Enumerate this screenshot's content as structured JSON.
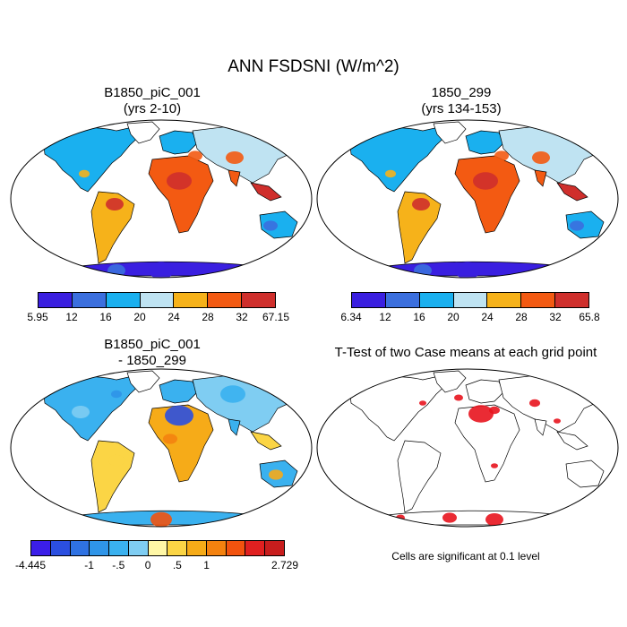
{
  "title": "ANN FSDSNI (W/m^2)",
  "panels": [
    {
      "title_line1": "B1850_piC_001",
      "title_line2": "(yrs 2-10)"
    },
    {
      "title_line1": "1850_299",
      "title_line2": "(yrs 134-153)"
    },
    {
      "title_line1": "B1850_piC_001",
      "title_line2": "- 1850_299"
    },
    {
      "title_line1": "T-Test of two Case means at each grid point",
      "title_line2": ""
    }
  ],
  "colorbars": {
    "case1": {
      "colors": [
        "#3a1fe0",
        "#3b6fde",
        "#1ab0ef",
        "#bfe3f2",
        "#f6b21a",
        "#f35a12",
        "#cf2f2c"
      ],
      "labels": [
        "5.95",
        "12",
        "16",
        "20",
        "24",
        "28",
        "32",
        "67.15"
      ]
    },
    "case2": {
      "colors": [
        "#3a1fe0",
        "#3b6fde",
        "#1ab0ef",
        "#bfe3f2",
        "#f6b21a",
        "#f35a12",
        "#cf2f2c"
      ],
      "labels": [
        "6.34",
        "12",
        "16",
        "20",
        "24",
        "28",
        "32",
        "65.8"
      ]
    },
    "diff": {
      "colors": [
        "#3b1ee8",
        "#2b4fe0",
        "#2f72e2",
        "#2f95e8",
        "#3ab1ef",
        "#7fcdf2",
        "#fff7a6",
        "#fbd545",
        "#f6ab18",
        "#f4820f",
        "#f2530e",
        "#e02020",
        "#c81d1d"
      ],
      "labels": [
        "-4.445",
        "-1",
        "-.5",
        "0",
        ".5",
        "1",
        "2.729"
      ]
    }
  },
  "ttest_note": "Cells are significant at 0.1 level"
}
